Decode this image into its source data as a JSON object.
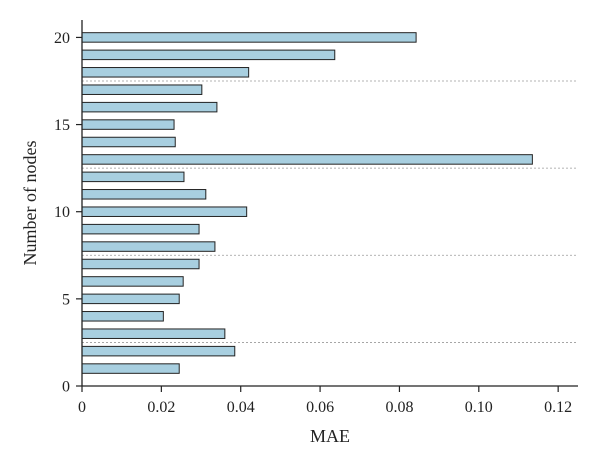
{
  "chart_data": {
    "type": "bar",
    "orientation": "horizontal",
    "xlabel": "MAE",
    "ylabel": "Number of nodes",
    "xlim": [
      0,
      0.125
    ],
    "ylim": [
      0,
      21
    ],
    "x_ticks": [
      0,
      0.02,
      0.04,
      0.06,
      0.08,
      0.1,
      0.12
    ],
    "x_tick_labels": [
      "0",
      "0.02",
      "0.04",
      "0.06",
      "0.08",
      "0.10",
      "0.12"
    ],
    "y_ticks": [
      0,
      5,
      10,
      15,
      20
    ],
    "y_tick_labels": [
      "0",
      "5",
      "10",
      "15",
      "20"
    ],
    "categories": [
      1,
      2,
      3,
      4,
      5,
      6,
      7,
      8,
      9,
      10,
      11,
      12,
      13,
      14,
      15,
      16,
      17,
      18,
      19,
      20
    ],
    "values": [
      0.0245,
      0.0385,
      0.036,
      0.0205,
      0.0245,
      0.0255,
      0.0295,
      0.0335,
      0.0295,
      0.0415,
      0.0312,
      0.0257,
      0.1135,
      0.0235,
      0.0232,
      0.034,
      0.0302,
      0.042,
      0.0637,
      0.0842
    ],
    "dotted_separators_y": [
      2.5,
      7.5,
      12.5,
      17.5
    ],
    "bar_color": "#a8cfe0",
    "edge_color": "#222222",
    "grid": false,
    "legend": "none"
  }
}
